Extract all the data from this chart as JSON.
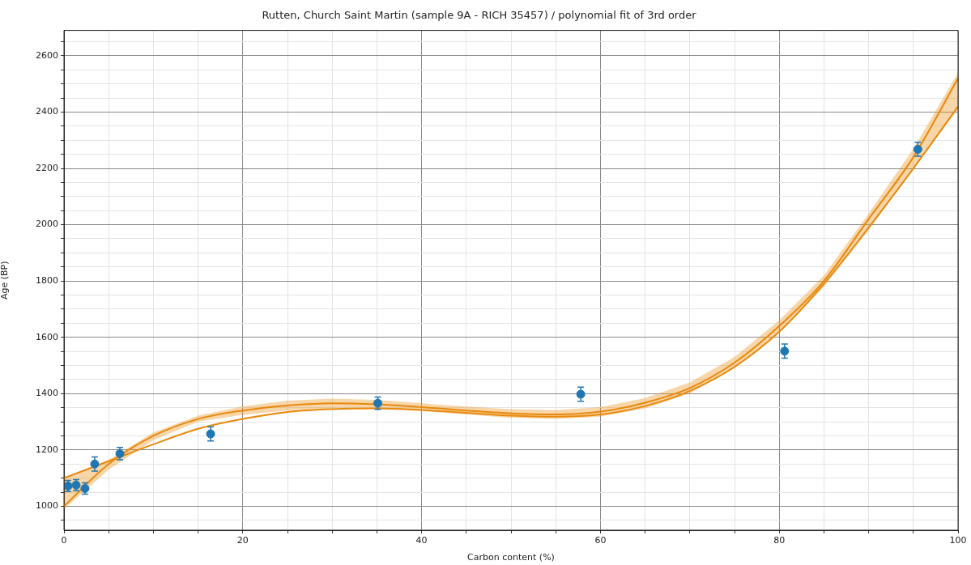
{
  "chart_data": {
    "type": "scatter",
    "title": "Rutten, Church Saint Martin (sample 9A - RICH 35457) / polynomial fit of 3rd order",
    "xlabel": "Carbon content (%)",
    "ylabel": "Age (BP)",
    "xlim": [
      0,
      100
    ],
    "ylim": [
      915,
      2690
    ],
    "xticks": [
      0,
      {
        "value": 5,
        "label": null
      },
      {
        "value": 10,
        "label": null
      },
      {
        "value": 15,
        "label": null
      },
      20,
      {
        "value": 25,
        "label": null
      },
      {
        "value": 30,
        "label": null
      },
      {
        "value": 35,
        "label": null
      },
      40,
      {
        "value": 45,
        "label": null
      },
      {
        "value": 50,
        "label": null
      },
      {
        "value": 55,
        "label": null
      },
      60,
      {
        "value": 65,
        "label": null
      },
      {
        "value": 70,
        "label": null
      },
      {
        "value": 75,
        "label": null
      },
      80,
      {
        "value": 85,
        "label": null
      },
      {
        "value": 90,
        "label": null
      },
      {
        "value": 95,
        "label": null
      },
      100
    ],
    "yticks": [
      {
        "value": 950,
        "label": null
      },
      1000,
      {
        "value": 1050,
        "label": null
      },
      {
        "value": 1100,
        "label": null
      },
      {
        "value": 1150,
        "label": null
      },
      1200,
      {
        "value": 1250,
        "label": null
      },
      {
        "value": 1300,
        "label": null
      },
      {
        "value": 1350,
        "label": null
      },
      1400,
      {
        "value": 1450,
        "label": null
      },
      {
        "value": 1500,
        "label": null
      },
      {
        "value": 1550,
        "label": null
      },
      1600,
      {
        "value": 1650,
        "label": null
      },
      {
        "value": 1700,
        "label": null
      },
      {
        "value": 1750,
        "label": null
      },
      1800,
      {
        "value": 1850,
        "label": null
      },
      {
        "value": 1900,
        "label": null
      },
      {
        "value": 1950,
        "label": null
      },
      2000,
      {
        "value": 2050,
        "label": null
      },
      {
        "value": 2100,
        "label": null
      },
      {
        "value": 2150,
        "label": null
      },
      2200,
      {
        "value": 2250,
        "label": null
      },
      {
        "value": 2300,
        "label": null
      },
      {
        "value": 2350,
        "label": null
      },
      2400,
      {
        "value": 2450,
        "label": null
      },
      {
        "value": 2500,
        "label": null
      },
      {
        "value": 2550,
        "label": null
      },
      2600,
      {
        "value": 2650,
        "label": null
      }
    ],
    "grid": true,
    "legend": false,
    "series": [
      {
        "type": "line",
        "marker": "none",
        "color": "#e8890c",
        "x": [
          0,
          5,
          10,
          15,
          20,
          25,
          30,
          35,
          40,
          45,
          50,
          55,
          60,
          65,
          70,
          75,
          80,
          85,
          90,
          95,
          100
        ],
        "values": [
          1000,
          1150,
          1250,
          1310,
          1340,
          1358,
          1366,
          1362,
          1352,
          1340,
          1330,
          1326,
          1336,
          1368,
          1420,
          1510,
          1640,
          1800,
          2020,
          2240,
          2520
        ],
        "lower": [
          990,
          1130,
          1235,
          1300,
          1325,
          1340,
          1348,
          1346,
          1338,
          1326,
          1314,
          1310,
          1318,
          1348,
          1400,
          1490,
          1615,
          1780,
          1980,
          2200,
          2410
        ],
        "upper": [
          1100,
          1165,
          1262,
          1322,
          1355,
          1375,
          1382,
          1378,
          1366,
          1354,
          1345,
          1342,
          1352,
          1384,
          1440,
          1530,
          1660,
          1820,
          2040,
          2270,
          2540
        ]
      },
      {
        "type": "line",
        "marker": "none",
        "color": "#e8890c",
        "x": [
          0,
          5,
          10,
          15,
          20,
          25,
          30,
          35,
          40,
          45,
          50,
          55,
          60,
          65,
          70,
          75,
          80,
          85,
          90,
          95,
          100
        ],
        "values": [
          1100,
          1160,
          1220,
          1275,
          1310,
          1335,
          1345,
          1348,
          1342,
          1332,
          1322,
          1318,
          1326,
          1356,
          1410,
          1495,
          1620,
          1790,
          1990,
          2200,
          2420
        ]
      },
      {
        "marker": "circle",
        "color": "#1f77b4",
        "x": [
          0.45,
          1.36,
          2.35,
          3.44,
          6.25,
          16.4,
          35.1,
          57.8,
          80.6,
          95.5
        ],
        "values": [
          1072,
          1075,
          1063,
          1150,
          1187,
          1257,
          1366,
          1398,
          1551,
          2268
        ],
        "errors": [
          20,
          20,
          20,
          25,
          22,
          25,
          22,
          25,
          25,
          25
        ]
      }
    ]
  }
}
